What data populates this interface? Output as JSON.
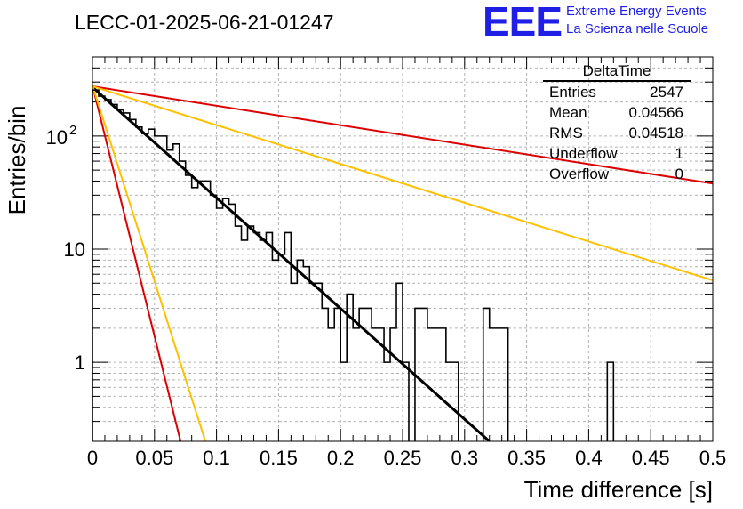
{
  "title": "LECC-01-2025-06-21-01247",
  "logo": {
    "text": "EEE",
    "line1": "Extreme Energy Events",
    "line2": "La Scienza nelle Scuole",
    "color": "#1f1fe6"
  },
  "stats": {
    "name": "DeltaTime",
    "entries_label": "Entries",
    "entries": "2547",
    "mean_label": "Mean",
    "mean": "0.04566",
    "rms_label": "RMS",
    "rms": "0.04518",
    "underflow_label": "Underflow",
    "underflow": "1",
    "overflow_label": "Overflow",
    "overflow": "0"
  },
  "chart_data": {
    "type": "line",
    "title": "LECC-01-2025-06-21-01247",
    "xlabel": "Time difference [s]",
    "ylabel": "Entries/bin",
    "xlim": [
      0,
      0.5
    ],
    "ylim": [
      0.2,
      500
    ],
    "yscale": "log",
    "grid": true,
    "x_ticks": [
      "0",
      "0.05",
      "0.1",
      "0.15",
      "0.2",
      "0.25",
      "0.3",
      "0.35",
      "0.4",
      "0.45",
      "0.5"
    ],
    "y_ticks": [
      "1",
      "10",
      "10^2"
    ],
    "histogram": {
      "bin_width": 0.005,
      "bin_start": 0,
      "counts": [
        255,
        225,
        210,
        190,
        170,
        160,
        140,
        120,
        105,
        115,
        100,
        100,
        75,
        85,
        60,
        45,
        35,
        40,
        40,
        30,
        23,
        28,
        25,
        16,
        12,
        16,
        14,
        12,
        14,
        8,
        9,
        14,
        5,
        8,
        7,
        5,
        5,
        3,
        2,
        3,
        1,
        4,
        2,
        3,
        3,
        2,
        2,
        1,
        2,
        5,
        1,
        0.1,
        3,
        3,
        2,
        2,
        2,
        1,
        1,
        0.1,
        0.1,
        0.1,
        0.1,
        3,
        2,
        2,
        2,
        0.1,
        0.1,
        0.1,
        0.1,
        0.1,
        0.1,
        0.1,
        0.1,
        0.1,
        0.1,
        0.1,
        0.1,
        0.1,
        0.1,
        0.1,
        0.1,
        1,
        0.1,
        0.1,
        0.1,
        0.1,
        0.1,
        0.1,
        0.1,
        0.1,
        0.1,
        0.1,
        0.1,
        0.1,
        0.1,
        0.1,
        0.1,
        0.1
      ]
    },
    "series": [
      {
        "color": "#000000",
        "x": [
          0,
          0.32
        ],
        "y": [
          270,
          0.2
        ]
      },
      {
        "color": "#dd0000",
        "x": [
          0,
          0.5
        ],
        "y": [
          275,
          38
        ]
      },
      {
        "color": "#ffc000",
        "x": [
          0,
          0.5
        ],
        "y": [
          275,
          5.3
        ]
      },
      {
        "color": "#dd0000",
        "x": [
          0,
          0.071
        ],
        "y": [
          280,
          0.2
        ]
      },
      {
        "color": "#ffc000",
        "x": [
          0,
          0.091
        ],
        "y": [
          280,
          0.2
        ]
      }
    ]
  }
}
